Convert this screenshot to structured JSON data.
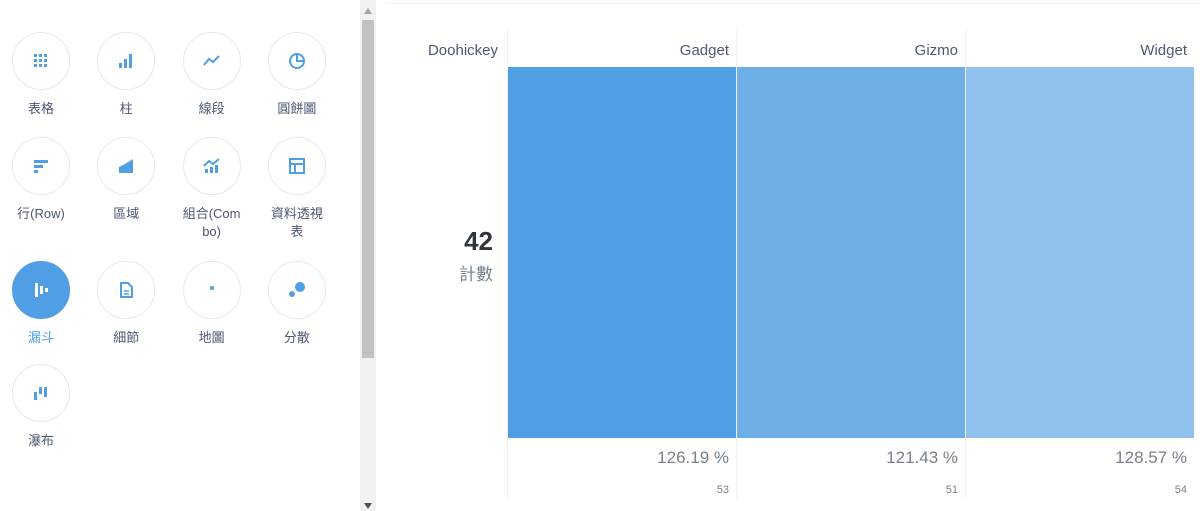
{
  "picker": {
    "items": [
      {
        "label": "表格"
      },
      {
        "label": "柱"
      },
      {
        "label": "線段"
      },
      {
        "label": "圓餅圖"
      },
      {
        "label": "行(Row)"
      },
      {
        "label": "區域"
      },
      {
        "label": "組合(Combo)"
      },
      {
        "label": "資料透視表"
      },
      {
        "label": "漏斗",
        "selected": true
      },
      {
        "label": "細節"
      },
      {
        "label": "地圖"
      },
      {
        "label": "分散"
      },
      {
        "label": "瀑布"
      }
    ]
  },
  "funnel": {
    "first_step": "Doohickey",
    "first_value": "42",
    "metric": "計數",
    "steps": [
      {
        "name": "Gadget",
        "percent": "126.19 %",
        "count": "53",
        "color": "#509ee3"
      },
      {
        "name": "Gizmo",
        "percent": "121.43 %",
        "count": "51",
        "color": "#6fafe7"
      },
      {
        "name": "Widget",
        "percent": "128.57 %",
        "count": "54",
        "color": "#8fc1ec"
      }
    ]
  }
}
